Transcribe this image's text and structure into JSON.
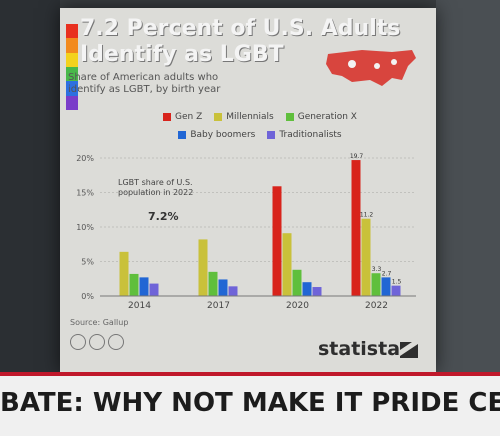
{
  "infographic": {
    "title_line1": "7.2 Percent of U.S. Adults",
    "title_line2": "Identify as LGBT",
    "subtitle": "Share of American adults who identify as LGBT, by birth year",
    "annotation_text": "LGBT share of U.S. population in 2022",
    "annotation_value": "7.2%",
    "source": "Source: Gallup",
    "brand": "statista",
    "rainbow_colors": [
      "#e8301f",
      "#f28a1e",
      "#f3d21d",
      "#49b84a",
      "#2d6fe0",
      "#7a3dc9"
    ]
  },
  "ticker": {
    "text": "BATE: WHY NOT MAKE IT PRIDE CE"
  },
  "chart_data": {
    "type": "bar",
    "categories": [
      "2014",
      "2017",
      "2020",
      "2022"
    ],
    "ylim": [
      0,
      20
    ],
    "yticks": [
      "0%",
      "5%",
      "10%",
      "15%",
      "20%"
    ],
    "grid": true,
    "legend_placement": "top",
    "series": [
      {
        "name": "Gen Z",
        "color": "#d8231b",
        "values": [
          null,
          null,
          15.9,
          19.7
        ]
      },
      {
        "name": "Millennials",
        "color": "#c9c13a",
        "values": [
          6.4,
          8.2,
          9.1,
          11.2
        ]
      },
      {
        "name": "Generation X",
        "color": "#5fbf3c",
        "values": [
          3.2,
          3.5,
          3.8,
          3.3
        ]
      },
      {
        "name": "Baby boomers",
        "color": "#2166d4",
        "values": [
          2.7,
          2.4,
          2.0,
          2.7
        ]
      },
      {
        "name": "Traditionalists",
        "color": "#6f64d8",
        "values": [
          1.8,
          1.4,
          1.3,
          1.5
        ]
      }
    ],
    "data_labels": {
      "2022": [
        "19.7",
        "11.2",
        "3.3",
        "2.7",
        "1.5"
      ]
    }
  }
}
